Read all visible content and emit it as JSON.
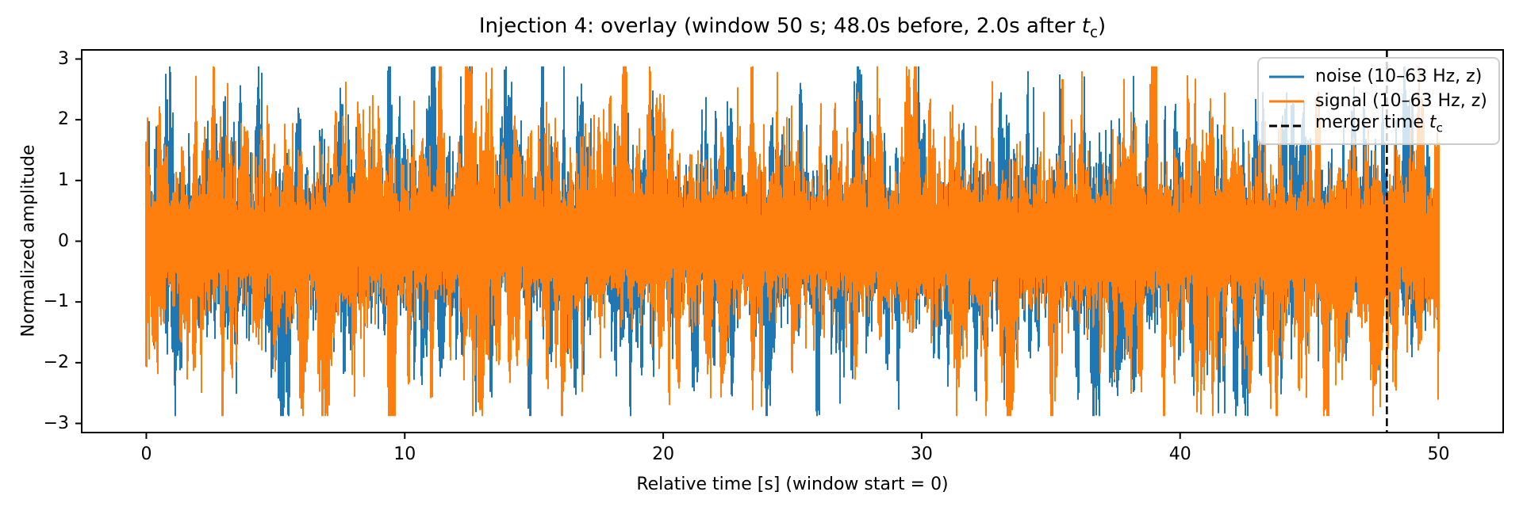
{
  "title": {
    "prefix": "Injection 4: overlay (window 50 s; 48.0s before, 2.0s after ",
    "var": "t",
    "sub": "c",
    "suffix": ")"
  },
  "legend": {
    "items": [
      {
        "label": "noise (10–63 Hz, z)",
        "color": "#1f77b4",
        "style": "solid"
      },
      {
        "label": "signal (10–63 Hz, z)",
        "color": "#ff7f0e",
        "style": "solid"
      },
      {
        "label_prefix": "merger time ",
        "label_var": "t",
        "label_sub": "c",
        "color": "#000000",
        "style": "dashed"
      }
    ]
  },
  "chart_data": {
    "type": "line",
    "title": "Injection 4: overlay (window 50 s; 48.0s before, 2.0s after t_c)",
    "xlabel": "Relative time [s] (window start = 0)",
    "ylabel": "Normalized amplitude",
    "xlim": [
      -2.5,
      52.5
    ],
    "ylim": [
      -3.15,
      3.15
    ],
    "xticks": {
      "values": [
        0,
        10,
        20,
        30,
        40,
        50
      ],
      "labels": [
        "0",
        "10",
        "20",
        "30",
        "40",
        "50"
      ]
    },
    "yticks": {
      "values": [
        3,
        2,
        1,
        0,
        -1,
        -2,
        -3
      ],
      "labels": [
        "3",
        "2",
        "1",
        "0",
        "−1",
        "−2",
        "−3"
      ]
    },
    "grid": false,
    "legend_position": "upper right",
    "injection": 4,
    "window_s": 50,
    "before_s": 48.0,
    "after_s": 2.0,
    "merger_time_s": 48.0,
    "axis_color": "#000000",
    "merger_line": {
      "x": 48.0,
      "color": "#000000",
      "style": "dashed"
    },
    "series": [
      {
        "name": "noise (10–63 Hz, z)",
        "color": "#1f77b4",
        "band_hz": [
          10,
          63
        ],
        "zscored": true,
        "t_start_s": 0,
        "t_end_s": 50,
        "amplitude_range": [
          -2.9,
          2.9
        ],
        "synthesis": {
          "kind": "per-pixel min/max envelope of band-limited gaussian noise (z-scored)",
          "seed": 101,
          "rho": 0.84,
          "base": 0.5,
          "amp": 0.78,
          "pow": 1.22,
          "jitter": 0.16,
          "clip": 2.88,
          "floor": 0.42
        }
      },
      {
        "name": "signal (10–63 Hz, z)",
        "color": "#ff7f0e",
        "band_hz": [
          10,
          63
        ],
        "zscored": true,
        "t_start_s": 0,
        "t_end_s": 50,
        "amplitude_range": [
          -2.85,
          2.85
        ],
        "synthesis": {
          "kind": "per-pixel min/max envelope of band-limited gaussian noise (z-scored)",
          "seed": 202,
          "rho": 0.84,
          "base": 0.5,
          "amp": 0.78,
          "pow": 1.22,
          "jitter": 0.16,
          "clip": 2.88,
          "floor": 0.42
        }
      }
    ]
  }
}
